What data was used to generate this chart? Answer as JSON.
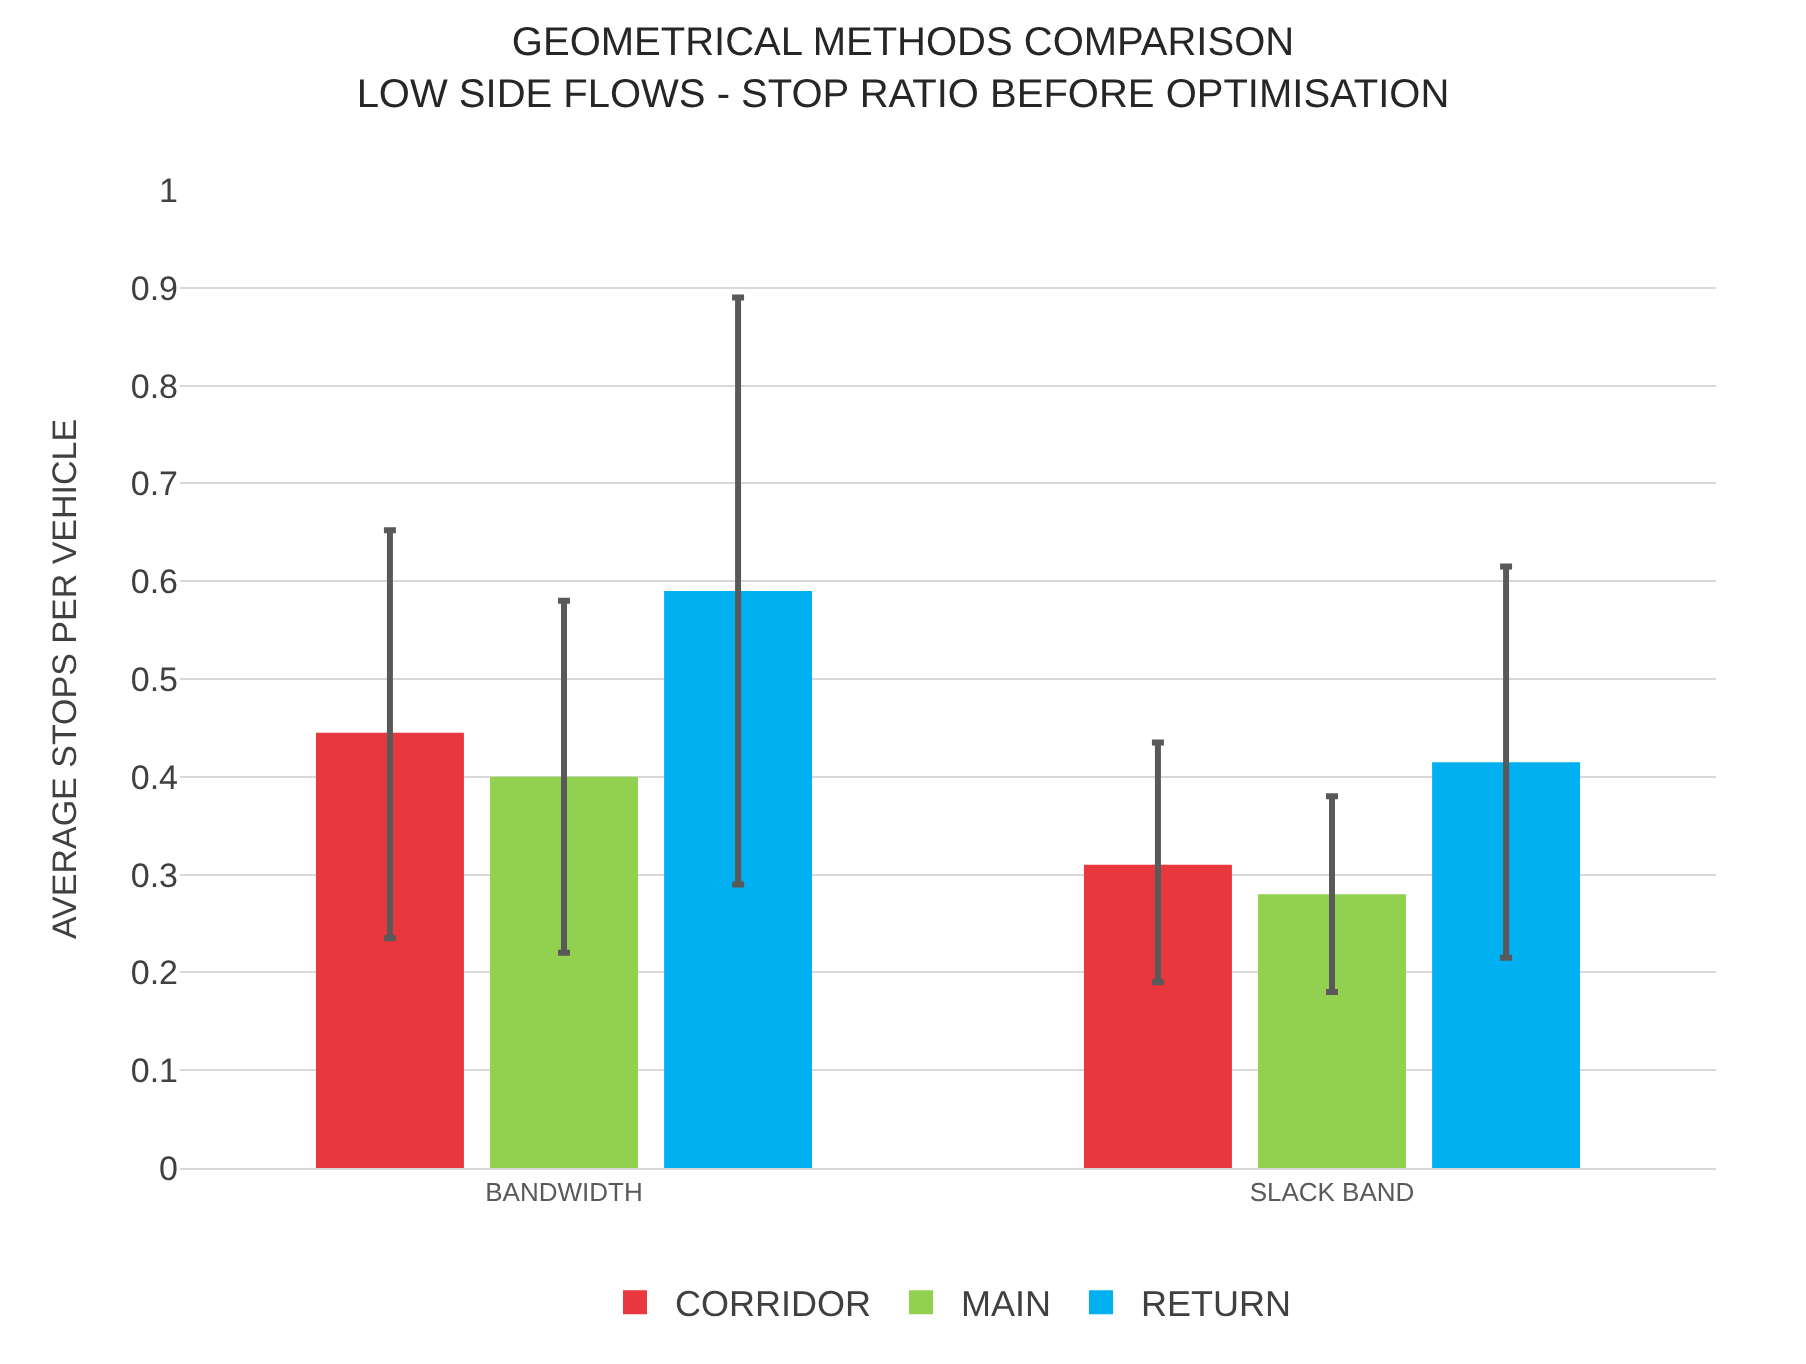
{
  "chart_data": {
    "type": "bar",
    "title": "GEOMETRICAL METHODS COMPARISON\nLOW SIDE FLOWS - STOP RATIO BEFORE OPTIMISATION",
    "ylabel": "AVERAGE STOPS PER VEHICLE",
    "categories": [
      "BANDWIDTH",
      "SLACK BAND"
    ],
    "series": [
      {
        "name": "CORRIDOR",
        "color": "#e8383d",
        "values": [
          0.445,
          0.31
        ],
        "errors": [
          [
            0.235,
            0.652
          ],
          [
            0.19,
            0.435
          ]
        ]
      },
      {
        "name": "MAIN",
        "color": "#92d050",
        "values": [
          0.4,
          0.28
        ],
        "errors": [
          [
            0.22,
            0.58
          ],
          [
            0.18,
            0.38
          ]
        ]
      },
      {
        "name": "RETURN",
        "color": "#00b0f0",
        "values": [
          0.59,
          0.415
        ],
        "errors": [
          [
            0.29,
            0.89
          ],
          [
            0.215,
            0.615
          ]
        ]
      }
    ],
    "ylim": [
      0,
      1
    ],
    "yticks": [
      0,
      0.1,
      0.2,
      0.3,
      0.4,
      0.5,
      0.6,
      0.7,
      0.8,
      0.9,
      1
    ],
    "grid": "y",
    "legend": "bottom"
  }
}
